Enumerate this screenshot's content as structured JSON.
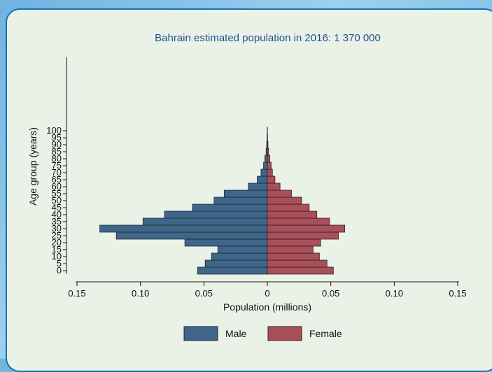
{
  "chart_data": {
    "type": "bar",
    "title": "Bahrain estimated population in 2016: 1 370 000",
    "xlabel": "Population (millions)",
    "ylabel": "Age group (years)",
    "orientation": "horizontal",
    "xlim": [
      -0.15,
      0.15
    ],
    "x_ticks": [
      -0.15,
      -0.1,
      -0.05,
      0,
      0.05,
      0.1,
      0.15
    ],
    "x_tick_labels": [
      "0.15",
      "0.10",
      "0.05",
      "0",
      "0.05",
      "0.10",
      "0.15"
    ],
    "categories": [
      0,
      5,
      10,
      15,
      20,
      25,
      30,
      35,
      40,
      45,
      50,
      55,
      60,
      65,
      70,
      75,
      80,
      85,
      90,
      95,
      100
    ],
    "series": [
      {
        "name": "Male",
        "color": "#3f6688",
        "values": [
          0.055,
          0.049,
          0.044,
          0.039,
          0.065,
          0.119,
          0.132,
          0.098,
          0.081,
          0.059,
          0.042,
          0.034,
          0.015,
          0.008,
          0.005,
          0.003,
          0.002,
          0.001,
          0.0005,
          0.0002,
          0.0001
        ]
      },
      {
        "name": "Female",
        "color": "#a8505a",
        "values": [
          0.052,
          0.047,
          0.041,
          0.036,
          0.042,
          0.056,
          0.061,
          0.049,
          0.039,
          0.033,
          0.027,
          0.019,
          0.01,
          0.006,
          0.004,
          0.003,
          0.002,
          0.001,
          0.0005,
          0.0002,
          0.0001
        ]
      }
    ],
    "grid": false,
    "legend_position": "bottom"
  }
}
